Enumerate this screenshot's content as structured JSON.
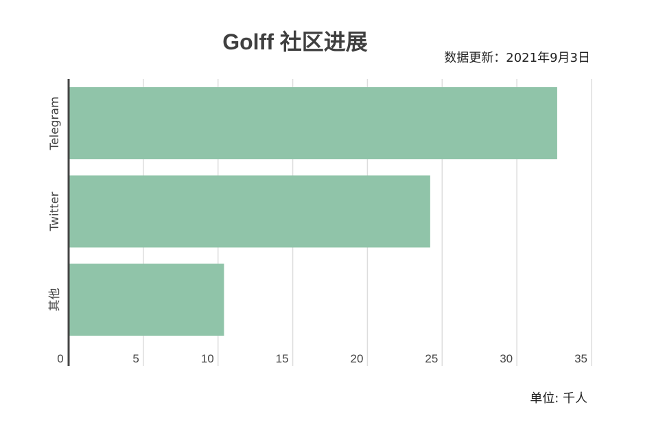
{
  "title": "Golff 社区进展",
  "update_note": "数据更新：2021年9月3日",
  "unit_note": "单位: 千人",
  "colors": {
    "bar": "#90c4a9",
    "axis": "#444444",
    "grid": "#dddddd"
  },
  "chart_data": {
    "type": "bar",
    "orientation": "horizontal",
    "categories": [
      "Telegram",
      "Twitter",
      "其他"
    ],
    "values": [
      32.7,
      24.2,
      10.4
    ],
    "xlim": [
      0,
      35
    ],
    "xticks": [
      0,
      5,
      10,
      15,
      20,
      25,
      30,
      35
    ],
    "grid": true,
    "legend": "none"
  }
}
